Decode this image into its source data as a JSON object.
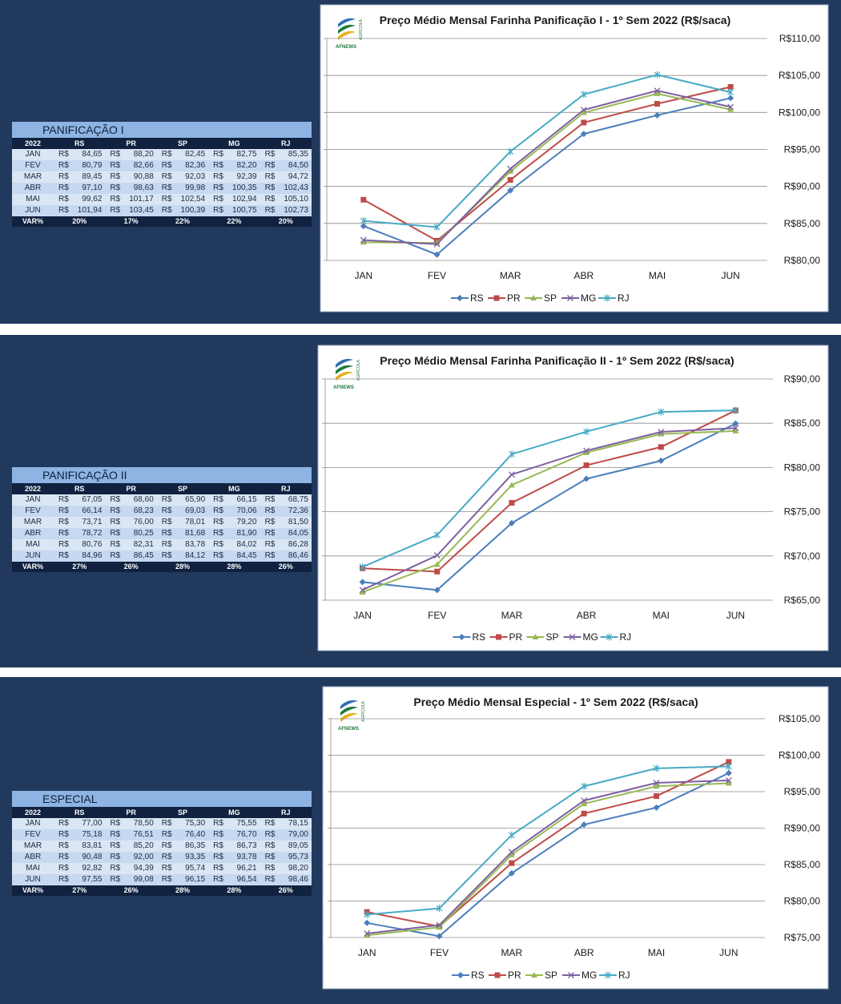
{
  "logo": {
    "text": "AFNEWS",
    "sub": "AGRÍCOLA"
  },
  "colors": {
    "RS": "#4a7ebb",
    "PR": "#be4b48",
    "SP": "#98b954",
    "MG": "#7d60a0",
    "RJ": "#46aac5"
  },
  "tables": [
    {
      "title": "PANIFICAÇÃO I",
      "year": "2022",
      "columns": [
        "RS",
        "PR",
        "SP",
        "MG",
        "RJ"
      ],
      "currency": "R$",
      "rows": [
        {
          "month": "JAN",
          "values": [
            "84,65",
            "88,20",
            "82,45",
            "82,75",
            "85,35"
          ]
        },
        {
          "month": "FEV",
          "values": [
            "80,79",
            "82,66",
            "82,36",
            "82,20",
            "84,50"
          ]
        },
        {
          "month": "MAR",
          "values": [
            "89,45",
            "90,88",
            "92,03",
            "92,39",
            "94,72"
          ]
        },
        {
          "month": "ABR",
          "values": [
            "97,10",
            "98,63",
            "99,98",
            "100,35",
            "102,43"
          ]
        },
        {
          "month": "MAI",
          "values": [
            "99,62",
            "101,17",
            "102,54",
            "102,94",
            "105,10"
          ]
        },
        {
          "month": "JUN",
          "values": [
            "101,94",
            "103,45",
            "100,39",
            "100,75",
            "102,73"
          ]
        }
      ],
      "var_label": "VAR%",
      "var": [
        "20%",
        "17%",
        "22%",
        "22%",
        "20%"
      ]
    },
    {
      "title": "PANIFICAÇÃO II",
      "year": "2022",
      "columns": [
        "RS",
        "PR",
        "SP",
        "MG",
        "RJ"
      ],
      "currency": "R$",
      "rows": [
        {
          "month": "JAN",
          "values": [
            "67,05",
            "68,60",
            "65,90",
            "66,15",
            "68,75"
          ]
        },
        {
          "month": "FEV",
          "values": [
            "66,14",
            "68,23",
            "69,03",
            "70,06",
            "72,36"
          ]
        },
        {
          "month": "MAR",
          "values": [
            "73,71",
            "76,00",
            "78,01",
            "79,20",
            "81,50"
          ]
        },
        {
          "month": "ABR",
          "values": [
            "78,72",
            "80,25",
            "81,68",
            "81,90",
            "84,05"
          ]
        },
        {
          "month": "MAI",
          "values": [
            "80,76",
            "82,31",
            "83,78",
            "84,02",
            "86,28"
          ]
        },
        {
          "month": "JUN",
          "values": [
            "84,96",
            "86,45",
            "84,12",
            "84,45",
            "86,46"
          ]
        }
      ],
      "var_label": "VAR%",
      "var": [
        "27%",
        "26%",
        "28%",
        "28%",
        "26%"
      ]
    },
    {
      "title": "ESPECIAL",
      "year": "2022",
      "columns": [
        "RS",
        "PR",
        "SP",
        "MG",
        "RJ"
      ],
      "currency": "R$",
      "rows": [
        {
          "month": "JAN",
          "values": [
            "77,00",
            "78,50",
            "75,30",
            "75,55",
            "78,15"
          ]
        },
        {
          "month": "FEV",
          "values": [
            "75,18",
            "76,51",
            "76,40",
            "76,70",
            "79,00"
          ]
        },
        {
          "month": "MAR",
          "values": [
            "83,81",
            "85,20",
            "86,35",
            "86,73",
            "89,05"
          ]
        },
        {
          "month": "ABR",
          "values": [
            "90,48",
            "92,00",
            "93,35",
            "93,78",
            "95,73"
          ]
        },
        {
          "month": "MAI",
          "values": [
            "92,82",
            "94,39",
            "95,74",
            "96,21",
            "98,20"
          ]
        },
        {
          "month": "JUN",
          "values": [
            "97,55",
            "99,08",
            "96,15",
            "96,54",
            "98,46"
          ]
        }
      ],
      "var_label": "VAR%",
      "var": [
        "27%",
        "26%",
        "28%",
        "28%",
        "26%"
      ]
    }
  ],
  "chart_data": [
    {
      "type": "line",
      "title": "Preço Médio Mensal Farinha Panificação I - 1º Sem 2022 (R$/saca)",
      "categories": [
        "JAN",
        "FEV",
        "MAR",
        "ABR",
        "MAI",
        "JUN"
      ],
      "ylim": [
        80,
        110
      ],
      "yticks": [
        "R$80,00",
        "R$85,00",
        "R$90,00",
        "R$95,00",
        "R$100,00",
        "R$105,00",
        "R$110,00"
      ],
      "legend": "bottom",
      "series": [
        {
          "name": "RS",
          "values": [
            84.65,
            80.79,
            89.45,
            97.1,
            99.62,
            101.94
          ]
        },
        {
          "name": "PR",
          "values": [
            88.2,
            82.66,
            90.88,
            98.63,
            101.17,
            103.45
          ]
        },
        {
          "name": "SP",
          "values": [
            82.45,
            82.36,
            92.03,
            99.98,
            102.54,
            100.39
          ]
        },
        {
          "name": "MG",
          "values": [
            82.75,
            82.2,
            92.39,
            100.35,
            102.94,
            100.75
          ]
        },
        {
          "name": "RJ",
          "values": [
            85.35,
            84.5,
            94.72,
            102.43,
            105.1,
            102.73
          ]
        }
      ]
    },
    {
      "type": "line",
      "title": "Preço Médio Mensal Farinha Panificação II - 1º Sem  2022 (R$/saca)",
      "categories": [
        "JAN",
        "FEV",
        "MAR",
        "ABR",
        "MAI",
        "JUN"
      ],
      "ylim": [
        65,
        90
      ],
      "yticks": [
        "R$65,00",
        "R$70,00",
        "R$75,00",
        "R$80,00",
        "R$85,00",
        "R$90,00"
      ],
      "legend": "bottom",
      "series": [
        {
          "name": "RS",
          "values": [
            67.05,
            66.14,
            73.71,
            78.72,
            80.76,
            84.96
          ]
        },
        {
          "name": "PR",
          "values": [
            68.6,
            68.23,
            76.0,
            80.25,
            82.31,
            86.45
          ]
        },
        {
          "name": "SP",
          "values": [
            65.9,
            69.03,
            78.01,
            81.68,
            83.78,
            84.12
          ]
        },
        {
          "name": "MG",
          "values": [
            66.15,
            70.06,
            79.2,
            81.9,
            84.02,
            84.45
          ]
        },
        {
          "name": "RJ",
          "values": [
            68.75,
            72.36,
            81.5,
            84.05,
            86.28,
            86.46
          ]
        }
      ]
    },
    {
      "type": "line",
      "title": "Preço Médio Mensal Especial - 1º Sem 2022 (R$/saca)",
      "categories": [
        "JAN",
        "FEV",
        "MAR",
        "ABR",
        "MAI",
        "JUN"
      ],
      "ylim": [
        75,
        105
      ],
      "yticks": [
        "R$75,00",
        "R$80,00",
        "R$85,00",
        "R$90,00",
        "R$95,00",
        "R$100,00",
        "R$105,00"
      ],
      "legend": "bottom",
      "series": [
        {
          "name": "RS",
          "values": [
            77.0,
            75.18,
            83.81,
            90.48,
            92.82,
            97.55
          ]
        },
        {
          "name": "PR",
          "values": [
            78.5,
            76.51,
            85.2,
            92.0,
            94.39,
            99.08
          ]
        },
        {
          "name": "SP",
          "values": [
            75.3,
            76.4,
            86.35,
            93.35,
            95.74,
            96.15
          ]
        },
        {
          "name": "MG",
          "values": [
            75.55,
            76.7,
            86.73,
            93.78,
            96.21,
            96.54
          ]
        },
        {
          "name": "RJ",
          "values": [
            78.15,
            79.0,
            89.05,
            95.73,
            98.2,
            98.46
          ]
        }
      ]
    }
  ]
}
